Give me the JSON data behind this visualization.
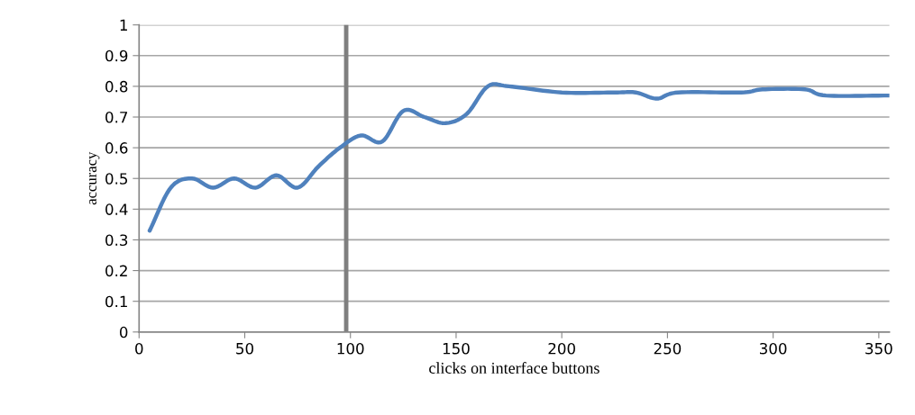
{
  "chart_data": {
    "type": "line",
    "xlabel": "clicks on interface buttons",
    "ylabel": "accuracy",
    "x": [
      5,
      15,
      25,
      35,
      45,
      55,
      65,
      75,
      85,
      95,
      105,
      115,
      125,
      135,
      145,
      155,
      165,
      175,
      200,
      225,
      235,
      245,
      255,
      285,
      295,
      315,
      325,
      355
    ],
    "series": [
      {
        "color": "#4f81bd",
        "values": [
          0.33,
          0.47,
          0.5,
          0.47,
          0.5,
          0.47,
          0.51,
          0.47,
          0.54,
          0.6,
          0.64,
          0.62,
          0.72,
          0.7,
          0.68,
          0.71,
          0.8,
          0.8,
          0.78,
          0.78,
          0.78,
          0.76,
          0.78,
          0.78,
          0.79,
          0.79,
          0.77,
          0.77
        ]
      }
    ],
    "xlim": [
      0,
      355
    ],
    "xticks": [
      0,
      50,
      100,
      150,
      200,
      250,
      300,
      350
    ],
    "ylim": [
      0,
      1
    ],
    "yticks": [
      0,
      0.1,
      0.2,
      0.3,
      0.4,
      0.5,
      0.6,
      0.7,
      0.8,
      0.9,
      1
    ],
    "grid": "y",
    "legend": false,
    "marker": "none",
    "line_style": "solid",
    "ref_lines": [
      {
        "axis": "x",
        "value": 98,
        "color": "#7f7f7f"
      }
    ]
  }
}
